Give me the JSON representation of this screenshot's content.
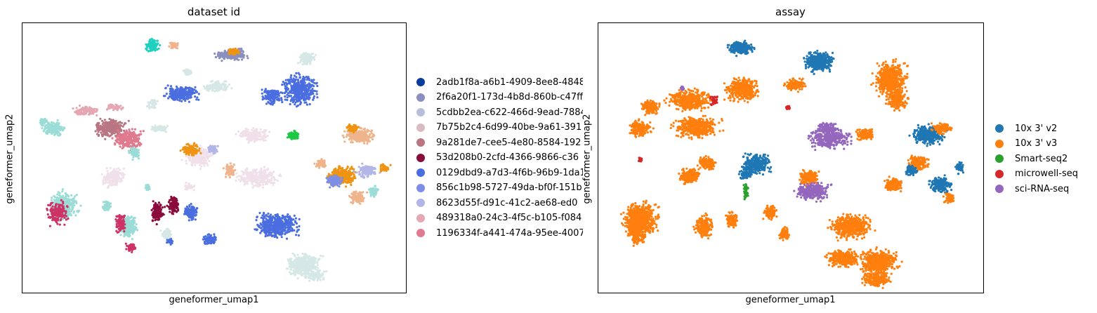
{
  "chart_data": [
    {
      "type": "scatter",
      "title": "dataset id",
      "xlabel": "geneformer_umap1",
      "ylabel": "geneformer_umap2",
      "grid": false,
      "ticks": false,
      "legend_placement": "right-outside",
      "series": [
        {
          "name": "2adb1f8a-a6b1-4909-8ee8-4848",
          "color": "#0a3c9e"
        },
        {
          "name": "2f6a20f1-173d-4b8d-860b-c47ff",
          "color": "#8a8fc0"
        },
        {
          "name": "5cdbb2ea-c622-466d-9ead-7884",
          "color": "#b9bfd8"
        },
        {
          "name": "7b75b2c4-6d99-40be-9a61-391",
          "color": "#d8bcc4"
        },
        {
          "name": "9a281de7-cee5-4e80-8584-192",
          "color": "#b97682"
        },
        {
          "name": "53d208b0-2cfd-4366-9866-c36",
          "color": "#8b0a3c"
        },
        {
          "name": "0129dbd9-a7d3-4f6b-96b9-1da1",
          "color": "#4a6ee0"
        },
        {
          "name": "856c1b98-5727-49da-bf0f-151b",
          "color": "#7c8ee6"
        },
        {
          "name": "8623d55f-d91c-41c2-ae68-ed0",
          "color": "#b2b6e6"
        },
        {
          "name": "489318a0-24c3-4f5c-b105-f084",
          "color": "#e6a7b4"
        },
        {
          "name": "1196334f-a441-474a-95ee-4007",
          "color": "#e07a8e"
        }
      ],
      "extra_colors": [
        "#9bddd6",
        "#d6e8e6",
        "#f0e0ea",
        "#f0b48c",
        "#ef9412",
        "#1ec845",
        "#1fd0c0",
        "#cc3366"
      ]
    },
    {
      "type": "scatter",
      "title": "assay",
      "xlabel": "geneformer_umap1",
      "ylabel": "geneformer_umap2",
      "grid": false,
      "ticks": false,
      "legend_placement": "right-outside",
      "series": [
        {
          "name": "10x 3' v2",
          "color": "#1f77b4"
        },
        {
          "name": "10x 3' v3",
          "color": "#ff7f0e"
        },
        {
          "name": "Smart-seq2",
          "color": "#2ca02c"
        },
        {
          "name": "microwell-seq",
          "color": "#d62728"
        },
        {
          "name": "sci-RNA-seq",
          "color": "#9467bd"
        }
      ]
    }
  ]
}
